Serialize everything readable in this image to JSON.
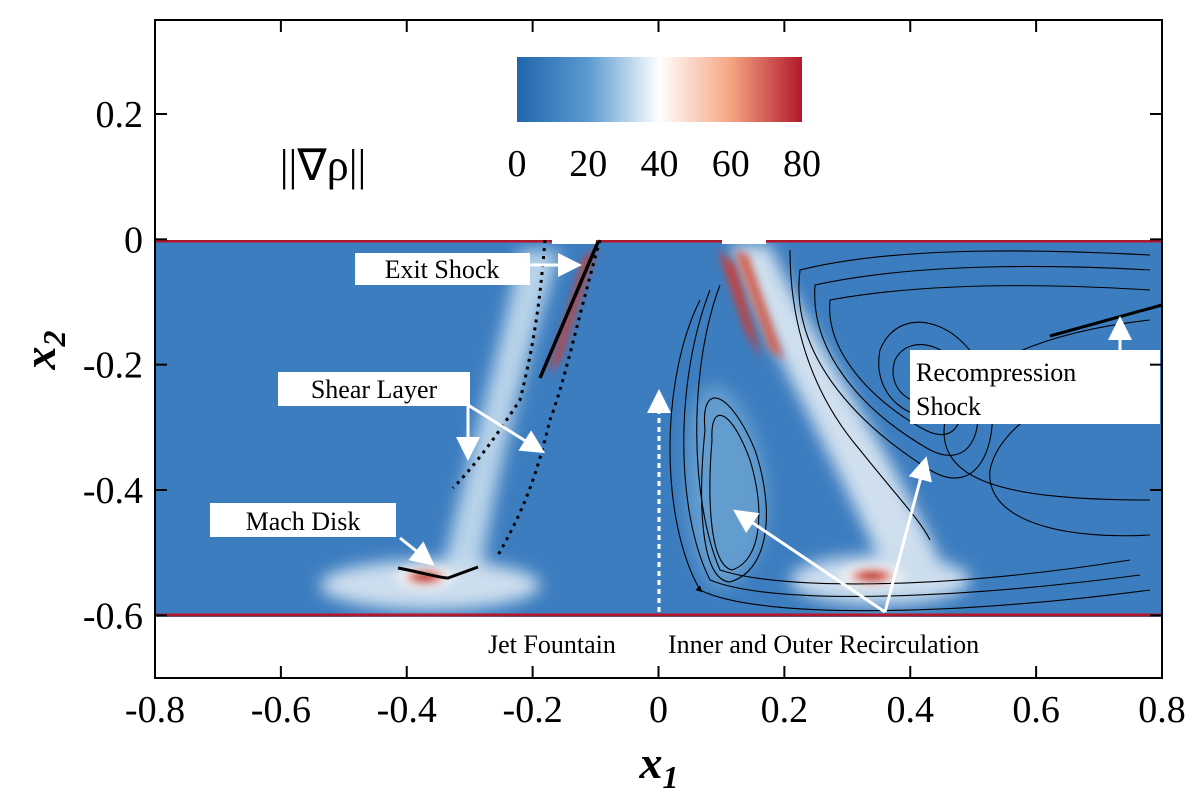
{
  "chart_data": {
    "type": "heatmap",
    "title": "",
    "field_label": "||∇ρ||",
    "xlabel": "x",
    "xlabel_sub": "1",
    "ylabel": "x",
    "ylabel_sub": "2",
    "xlim": [
      -0.8,
      0.8
    ],
    "ylim": [
      -0.7,
      0.35
    ],
    "x_ticks": [
      -0.8,
      -0.6,
      -0.4,
      -0.2,
      0,
      0.2,
      0.4,
      0.6,
      0.8
    ],
    "x_tick_labels": [
      "-0.8",
      "-0.6",
      "-0.4",
      "-0.2",
      "0",
      "0.2",
      "0.4",
      "0.6",
      "0.8"
    ],
    "y_ticks": [
      0.2,
      0,
      -0.2,
      -0.4,
      -0.6
    ],
    "y_tick_labels": [
      "0.2",
      "0",
      "-0.2",
      "-0.4",
      "-0.6"
    ],
    "domain": {
      "x": [
        -0.8,
        0.8
      ],
      "y": [
        -0.6,
        0
      ]
    },
    "colorbar": {
      "range": [
        0,
        80
      ],
      "ticks": [
        0,
        20,
        40,
        60,
        80
      ],
      "tick_labels": [
        "0",
        "20",
        "40",
        "60",
        "80"
      ],
      "colors": [
        "#2166ac",
        "#5a9ad0",
        "#ffffff",
        "#f4a582",
        "#b2182b"
      ]
    },
    "features": [
      {
        "name": "Exit Shock",
        "x": -0.13,
        "y": -0.04
      },
      {
        "name": "Shear Layer",
        "x": -0.24,
        "y": -0.3
      },
      {
        "name": "Mach Disk",
        "x": -0.36,
        "y": -0.53
      },
      {
        "name": "Jet Fountain",
        "x": 0.0,
        "y": -0.28
      },
      {
        "name": "Inner and Outer Recirculation",
        "x": 0.3,
        "y": -0.48
      },
      {
        "name": "Recompression Shock",
        "x": 0.7,
        "y": -0.15
      }
    ]
  },
  "annotations": {
    "exit_shock": "Exit Shock",
    "shear_layer": "Shear Layer",
    "mach_disk": "Mach Disk",
    "recompression_line1": "Recompression",
    "recompression_line2": "Shock",
    "jet_fountain": "Jet Fountain",
    "recirculation": "Inner and Outer Recirculation"
  }
}
